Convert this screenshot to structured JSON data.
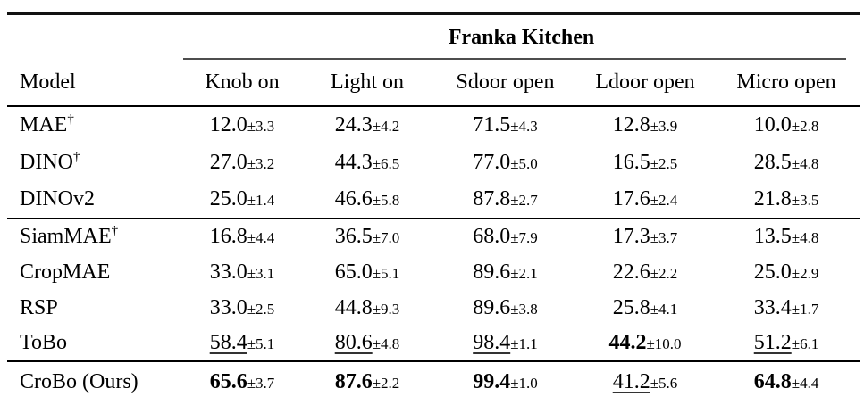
{
  "table": {
    "group_header": "Franka Kitchen",
    "columns": {
      "model": "Model",
      "c1": "Knob on",
      "c2": "Light on",
      "c3": "Sdoor open",
      "c4": "Ldoor open",
      "c5": "Micro open"
    },
    "groups": [
      {
        "rows": [
          {
            "model": "MAE",
            "sup": "†",
            "cells": [
              {
                "v": "12.0",
                "s": "±3.3"
              },
              {
                "v": "24.3",
                "s": "±4.2"
              },
              {
                "v": "71.5",
                "s": "±4.3"
              },
              {
                "v": "12.8",
                "s": "±3.9"
              },
              {
                "v": "10.0",
                "s": "±2.8"
              }
            ]
          },
          {
            "model": "DINO",
            "sup": "†",
            "cells": [
              {
                "v": "27.0",
                "s": "±3.2"
              },
              {
                "v": "44.3",
                "s": "±6.5"
              },
              {
                "v": "77.0",
                "s": "±5.0"
              },
              {
                "v": "16.5",
                "s": "±2.5"
              },
              {
                "v": "28.5",
                "s": "±4.8"
              }
            ]
          },
          {
            "model": "DINOv2",
            "sup": "",
            "cells": [
              {
                "v": "25.0",
                "s": "±1.4"
              },
              {
                "v": "46.6",
                "s": "±5.8"
              },
              {
                "v": "87.8",
                "s": "±2.7"
              },
              {
                "v": "17.6",
                "s": "±2.4"
              },
              {
                "v": "21.8",
                "s": "±3.5"
              }
            ]
          }
        ]
      },
      {
        "rows": [
          {
            "model": "SiamMAE",
            "sup": "†",
            "cells": [
              {
                "v": "16.8",
                "s": "±4.4"
              },
              {
                "v": "36.5",
                "s": "±7.0"
              },
              {
                "v": "68.0",
                "s": "±7.9"
              },
              {
                "v": "17.3",
                "s": "±3.7"
              },
              {
                "v": "13.5",
                "s": "±4.8"
              }
            ]
          },
          {
            "model": "CropMAE",
            "sup": "",
            "cells": [
              {
                "v": "33.0",
                "s": "±3.1"
              },
              {
                "v": "65.0",
                "s": "±5.1"
              },
              {
                "v": "89.6",
                "s": "±2.1"
              },
              {
                "v": "22.6",
                "s": "±2.2"
              },
              {
                "v": "25.0",
                "s": "±2.9"
              }
            ]
          },
          {
            "model": "RSP",
            "sup": "",
            "cells": [
              {
                "v": "33.0",
                "s": "±2.5"
              },
              {
                "v": "44.8",
                "s": "±9.3"
              },
              {
                "v": "89.6",
                "s": "±3.8"
              },
              {
                "v": "25.8",
                "s": "±4.1"
              },
              {
                "v": "33.4",
                "s": "±1.7"
              }
            ]
          },
          {
            "model": "ToBo",
            "sup": "",
            "cells": [
              {
                "v": "58.4",
                "s": "±5.1"
              },
              {
                "v": "80.6",
                "s": "±4.8"
              },
              {
                "v": "98.4",
                "s": "±1.1"
              },
              {
                "v": "44.2",
                "s": "±10.0"
              },
              {
                "v": "51.2",
                "s": "±6.1"
              }
            ]
          }
        ]
      },
      {
        "rows": [
          {
            "model": "CroBo (Ours)",
            "sup": "",
            "cells": [
              {
                "v": "65.6",
                "s": "±3.7"
              },
              {
                "v": "87.6",
                "s": "±2.2"
              },
              {
                "v": "99.4",
                "s": "±1.0"
              },
              {
                "v": "41.2",
                "s": "±5.6"
              },
              {
                "v": "64.8",
                "s": "±4.4"
              }
            ]
          }
        ]
      }
    ]
  }
}
